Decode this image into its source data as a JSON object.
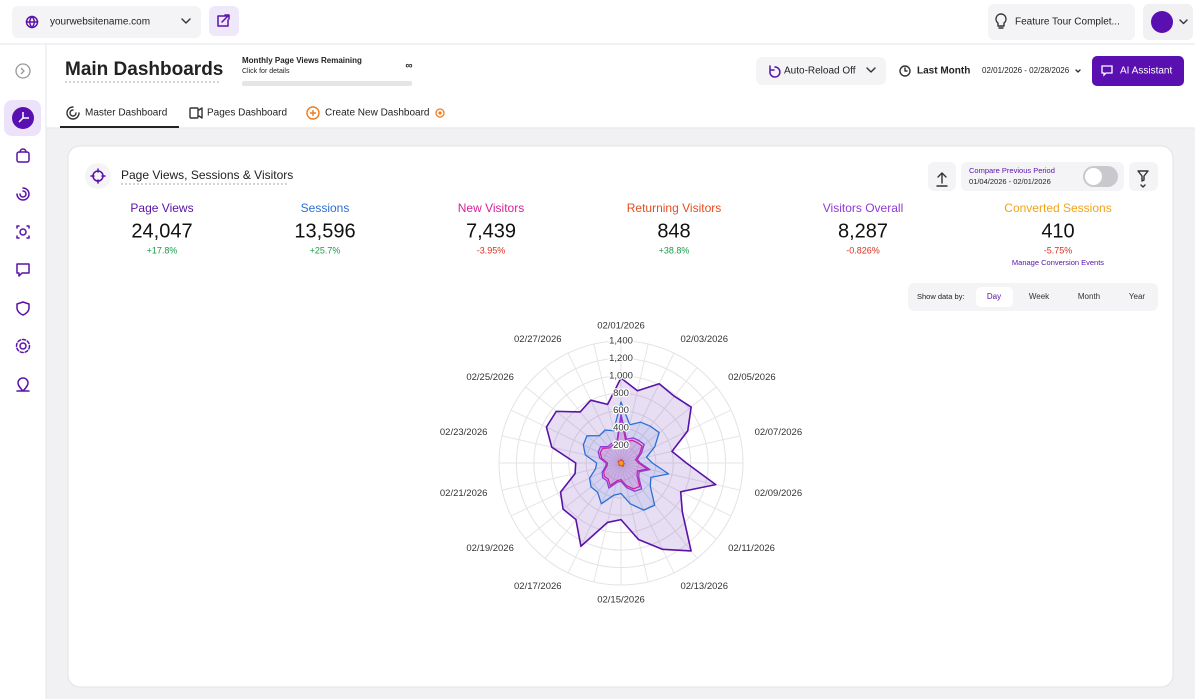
{
  "topbar": {
    "site": "yourwebsitename.com",
    "tour": "Feature Tour Complet..."
  },
  "header": {
    "title": "Main Dashboards",
    "quota_label": "Monthly Page Views Remaining",
    "quota_link": "Click for details",
    "quota_value": "∞",
    "auto_reload": "Auto-Reload Off",
    "period": "Last Month",
    "date_range": "02/01/2026 - 02/28/2026",
    "assistant": "AI Assistant"
  },
  "tabs": [
    "Master Dashboard",
    "Pages Dashboard",
    "Create New Dashboard"
  ],
  "card": {
    "title": "Page Views, Sessions & Visitors",
    "compare_label": "Compare Previous Period",
    "compare_range": "01/04/2026 - 02/01/2026",
    "metrics": [
      {
        "value": "24,047",
        "change": "+17.8%"
      },
      {
        "value": "13,596",
        "change": "+25.7%"
      },
      {
        "value": "7,439",
        "change": "-3.95%"
      },
      {
        "value": "848",
        "change": "+38.8%"
      },
      {
        "value": "8,287",
        "change": "-0.826%"
      },
      {
        "value": "410",
        "change": "-5.75%"
      }
    ],
    "manage_link": "Manage Conversion Events",
    "granularity_label": "Show data by:",
    "granularity": [
      "Day",
      "Week",
      "Month",
      "Year"
    ]
  },
  "chart_data": {
    "type": "radar",
    "categories": [
      "02/01/2026",
      null,
      "02/03/2026",
      null,
      "02/05/2026",
      null,
      "02/07/2026",
      null,
      "02/09/2026",
      null,
      "02/11/2026",
      null,
      "02/13/2026",
      null,
      "02/15/2026",
      null,
      "02/17/2026",
      null,
      "02/19/2026",
      null,
      "02/21/2026",
      null,
      "02/23/2026",
      null,
      "02/25/2026",
      null,
      "02/27/2026",
      null
    ],
    "ylim": [
      0,
      1400
    ],
    "yticks": [
      200,
      400,
      600,
      800,
      {
        "value": 1000,
        "label": "1,000"
      },
      {
        "value": 1200,
        "label": "1,200"
      },
      {
        "value": 1400,
        "label": "1,400"
      }
    ],
    "series": [
      {
        "name": "Page Views",
        "color": "#5a12a8",
        "values": [
          975,
          850,
          1010,
          980,
          1030,
          850,
          600,
          750,
          1115,
          760,
          900,
          1290,
          1100,
          900,
          650,
          700,
          1060,
          830,
          850,
          770,
          540,
          520,
          815,
          950,
          950,
          750,
          800,
          690
        ]
      },
      {
        "name": "Sessions",
        "color": "#2b6fd6",
        "values": [
          700,
          450,
          520,
          540,
          560,
          430,
          300,
          360,
          560,
          380,
          430,
          620,
          600,
          480,
          350,
          380,
          520,
          430,
          440,
          400,
          300,
          280,
          420,
          480,
          500,
          400,
          420,
          380
        ]
      },
      {
        "name": "New Visitors",
        "color": "#d91f9a",
        "values": [
          530,
          250,
          290,
          300,
          310,
          235,
          170,
          200,
          310,
          210,
          235,
          345,
          330,
          265,
          190,
          210,
          290,
          235,
          245,
          220,
          165,
          155,
          225,
          265,
          270,
          220,
          225,
          210
        ]
      },
      {
        "name": "Returning Visitors",
        "color": "#e84c1e",
        "values": [
          40,
          30,
          35,
          30,
          35,
          25,
          20,
          25,
          40,
          25,
          30,
          45,
          40,
          30,
          20,
          25,
          35,
          30,
          30,
          25,
          20,
          20,
          30,
          35,
          35,
          25,
          30,
          30
        ]
      },
      {
        "name": "Visitors Overall",
        "color": "#8e3ad9",
        "values": [
          560,
          280,
          320,
          330,
          340,
          260,
          190,
          220,
          340,
          230,
          260,
          380,
          360,
          290,
          210,
          230,
          320,
          260,
          270,
          240,
          180,
          170,
          250,
          290,
          300,
          240,
          250,
          230
        ]
      },
      {
        "name": "Converted Sessions",
        "color": "#f0a41c",
        "values": [
          20,
          12,
          15,
          14,
          18,
          12,
          10,
          12,
          20,
          12,
          14,
          22,
          20,
          15,
          10,
          12,
          18,
          14,
          14,
          12,
          10,
          10,
          14,
          16,
          18,
          12,
          14,
          14
        ]
      }
    ]
  }
}
